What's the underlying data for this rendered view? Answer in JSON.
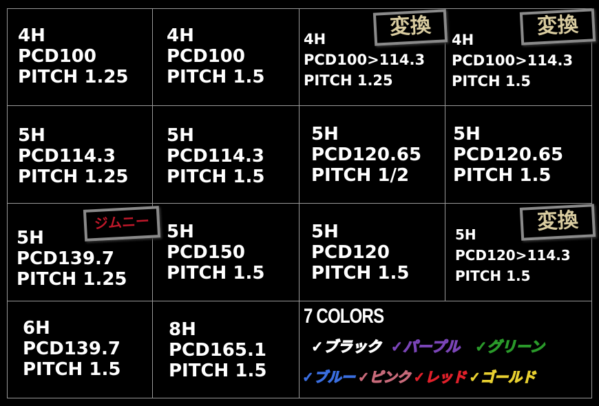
{
  "specs": [
    {
      "holes": "4H",
      "pcd": "PCD100",
      "pitch": "PITCH 1.25"
    },
    {
      "holes": "4H",
      "pcd": "PCD100",
      "pitch": "PITCH 1.5"
    },
    {
      "holes": "4H",
      "pcd": "PCD100>114.3",
      "pitch": "PITCH 1.25",
      "badge": "変換"
    },
    {
      "holes": "4H",
      "pcd": "PCD100>114.3",
      "pitch": "PITCH 1.5",
      "badge": "変換"
    },
    {
      "holes": "5H",
      "pcd": "PCD114.3",
      "pitch": "PITCH 1.25"
    },
    {
      "holes": "5H",
      "pcd": "PCD114.3",
      "pitch": "PITCH 1.5"
    },
    {
      "holes": "5H",
      "pcd": "PCD120.65",
      "pitch": "PITCH 1/2"
    },
    {
      "holes": "5H",
      "pcd": "PCD120.65",
      "pitch": "PITCH 1.5"
    },
    {
      "holes": "5H",
      "pcd": "PCD139.7",
      "pitch": "PITCH 1.25",
      "badge": "ジムニー"
    },
    {
      "holes": "5H",
      "pcd": "PCD150",
      "pitch": "PITCH 1.5"
    },
    {
      "holes": "5H",
      "pcd": "PCD120",
      "pitch": "PITCH 1.5"
    },
    {
      "holes": "5H",
      "pcd": "PCD120>114.3",
      "pitch": "PITCH 1.5",
      "badge": "変換"
    },
    {
      "holes": "6H",
      "pcd": "PCD139.7",
      "pitch": "PITCH 1.5"
    },
    {
      "holes": "8H",
      "pcd": "PCD165.1",
      "pitch": "PITCH 1.5"
    }
  ],
  "colors": {
    "title": "7 COLORS",
    "items": [
      {
        "label": "✓ブラック",
        "color": "#ffffff"
      },
      {
        "label": "✓パープル",
        "color": "#7b45b8"
      },
      {
        "label": "✓グリーン",
        "color": "#2a9a2a"
      },
      {
        "label": "✓ブルー",
        "color": "#3a6ee0"
      },
      {
        "label": "✓ピンク",
        "color": "#c86a7a"
      },
      {
        "label": "✓レッド",
        "color": "#e0202a"
      },
      {
        "label": "✓ゴールド",
        "color": "#e8d030"
      }
    ]
  }
}
